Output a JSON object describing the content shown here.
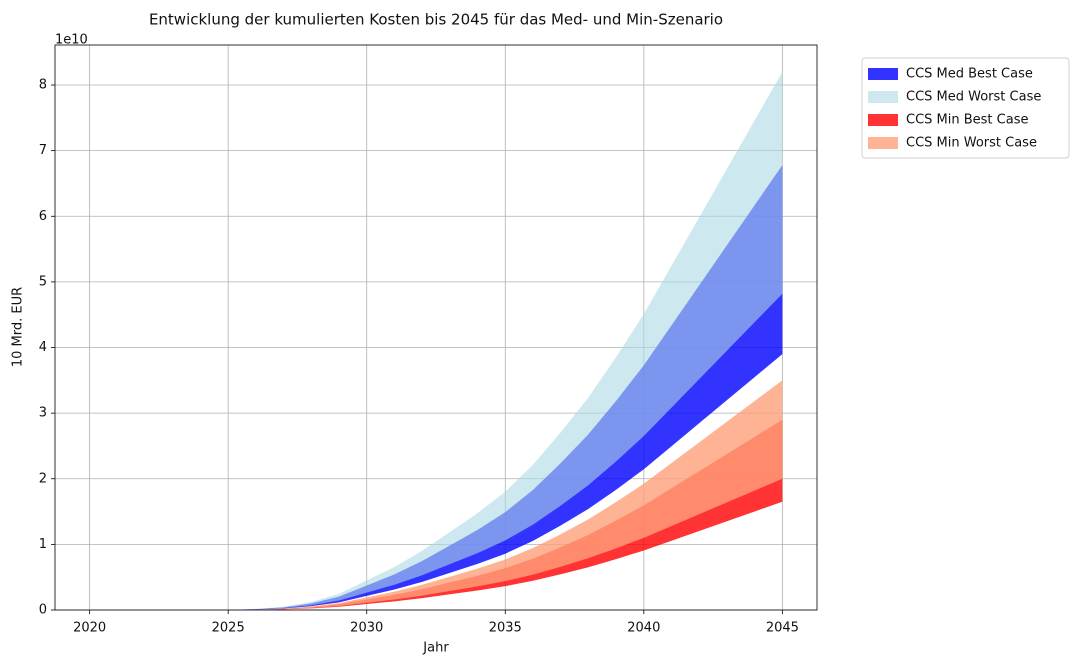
{
  "chart_data": {
    "type": "band",
    "title": "Entwicklung der kumulierten Kosten bis 2045 für das Med- und Min-Szenario",
    "xlabel": "Jahr",
    "ylabel": "10 Mrd. EUR",
    "y_offset_label": "1e10",
    "x": [
      2020,
      2021,
      2022,
      2023,
      2024,
      2025,
      2026,
      2027,
      2028,
      2029,
      2030,
      2031,
      2032,
      2033,
      2034,
      2035,
      2036,
      2037,
      2038,
      2039,
      2040,
      2041,
      2042,
      2043,
      2044,
      2045
    ],
    "xlim": [
      2018.75,
      2046.25
    ],
    "xticks": [
      2020,
      2025,
      2030,
      2035,
      2040,
      2045
    ],
    "ylim": [
      0,
      86100000000.0
    ],
    "yticks": [
      0,
      {
        "value": 10000000000.0,
        "label": "1"
      },
      {
        "value": 20000000000.0,
        "label": "2"
      },
      {
        "value": 30000000000.0,
        "label": "3"
      },
      {
        "value": 40000000000.0,
        "label": "4"
      },
      {
        "value": 50000000000.0,
        "label": "5"
      },
      {
        "value": 60000000000.0,
        "label": "6"
      },
      {
        "value": 70000000000.0,
        "label": "7"
      },
      {
        "value": 80000000000.0,
        "label": "8"
      }
    ],
    "grid": true,
    "legend": "outside upper right",
    "series": [
      {
        "name": "CCS Med Best Case",
        "color": "blue",
        "alpha": 0.8,
        "low": [
          0,
          0,
          0,
          0,
          0,
          0,
          78000000.0,
          234000000.0,
          585000000.0,
          1170000000.0,
          2145000000.0,
          3120000000.0,
          4290000000.0,
          5655000000.0,
          7020000000.0,
          8580000000.0,
          10530000000.0,
          12870000000.0,
          15405000000.0,
          18330000000.0,
          21450000000.0,
          24960000000.0,
          28470000000.0,
          31980000000.0,
          35490000000.0,
          39000000000.0
        ],
        "high": [
          0,
          0,
          0,
          0,
          0,
          0,
          136000000.0,
          407000000.0,
          1017000000.0,
          2034000000.0,
          3729000000.0,
          5424000000.0,
          7458000000.0,
          9831000000.0,
          12204000000.0,
          14916000000.0,
          18306000000.0,
          22374000000.0,
          26781000000.0,
          31866000000.0,
          37290000000.0,
          43392000000.0,
          49494000000.0,
          55596000000.0,
          61698000000.0,
          67800000000.0
        ]
      },
      {
        "name": "CCS Med Worst Case",
        "color": "lightblue",
        "alpha": 0.6,
        "low": [
          0,
          0,
          0,
          0,
          0,
          0,
          96000000.0,
          289000000.0,
          723000000.0,
          1446000000.0,
          2651000000.0,
          3856000000.0,
          5302000000.0,
          6989000000.0,
          8676000000.0,
          10604000000.0,
          13014000000.0,
          15906000000.0,
          19039000000.0,
          22654000000.0,
          26510000000.0,
          30848000000.0,
          35186000000.0,
          39524000000.0,
          43862000000.0,
          48200000000.0
        ],
        "high": [
          0,
          0,
          0,
          0,
          0,
          0,
          164000000.0,
          492000000.0,
          1230000000.0,
          2460000000.0,
          4510000000.0,
          6560000000.0,
          9020000000.0,
          11890000000.0,
          14760000000.0,
          18040000000.0,
          22140000000.0,
          27060000000.0,
          32390000000.0,
          38540000000.0,
          45100000000.0,
          52480000000.0,
          59860000000.0,
          67240000000.0,
          74620000000.0,
          82000000000.0
        ]
      },
      {
        "name": "CCS Min Best Case",
        "color": "red",
        "alpha": 0.8,
        "low": [
          0,
          0,
          0,
          0,
          0,
          0,
          33000000.0,
          99000000.0,
          248000000.0,
          495000000.0,
          908000000.0,
          1320000000.0,
          1815000000.0,
          2393000000.0,
          2970000000.0,
          3630000000.0,
          4455000000.0,
          5445000000.0,
          6518000000.0,
          7755000000.0,
          9075000000.0,
          10560000000.0,
          12045000000.0,
          13530000000.0,
          15015000000.0,
          16500000000.0
        ],
        "high": [
          0,
          0,
          0,
          0,
          0,
          0,
          58000000.0,
          174000000.0,
          435000000.0,
          870000000.0,
          1595000000.0,
          2320000000.0,
          3190000000.0,
          4205000000.0,
          5220000000.0,
          6380000000.0,
          7830000000.0,
          9570000000.0,
          11455000000.0,
          13630000000.0,
          15950000000.0,
          18560000000.0,
          21170000000.0,
          23780000000.0,
          26390000000.0,
          29000000000.0
        ]
      },
      {
        "name": "CCS Min Worst Case",
        "color": "lightsalmon",
        "alpha": 0.8,
        "low": [
          0,
          0,
          0,
          0,
          0,
          0,
          40000000.0,
          120000000.0,
          300000000.0,
          600000000.0,
          1100000000.0,
          1600000000.0,
          2200000000.0,
          2900000000.0,
          3600000000.0,
          4400000000.0,
          5400000000.0,
          6600000000.0,
          7900000000.0,
          9400000000.0,
          11000000000.0,
          12800000000.0,
          14600000000.0,
          16400000000.0,
          18200000000.0,
          20000000000.0
        ],
        "high": [
          0,
          0,
          0,
          0,
          0,
          0,
          70000000.0,
          210000000.0,
          525000000.0,
          1050000000.0,
          1925000000.0,
          2800000000.0,
          3850000000.0,
          5075000000.0,
          6300000000.0,
          7700000000.0,
          9450000000.0,
          11550000000.0,
          13825000000.0,
          16450000000.0,
          19250000000.0,
          22400000000.0,
          25550000000.0,
          28700000000.0,
          31850000000.0,
          35000000000.0
        ]
      }
    ]
  }
}
